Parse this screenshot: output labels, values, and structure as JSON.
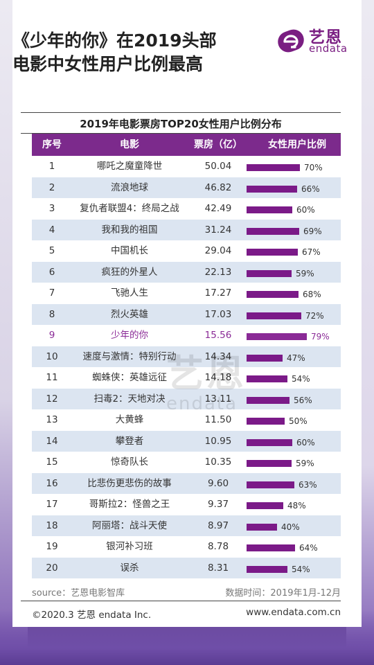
{
  "headline": {
    "line1": "《少年的你》在2019头部",
    "line2": "电影中女性用户比例最高"
  },
  "brand": {
    "name_cn": "艺恩",
    "name_en": "endata",
    "color": "#7a1e82"
  },
  "chart_data": {
    "type": "table",
    "title": "2019年电影票房TOP20女性用户比例分布",
    "columns": [
      "序号",
      "电影",
      "票房（亿）",
      "女性用户比例"
    ],
    "bar_max": 100,
    "highlight_rank": 9,
    "rows": [
      {
        "rank": "1",
        "movie": "哪吒之魔童降世",
        "box_office": "50.04",
        "female_pct": 70,
        "female_label": "70%"
      },
      {
        "rank": "2",
        "movie": "流浪地球",
        "box_office": "46.82",
        "female_pct": 66,
        "female_label": "66%"
      },
      {
        "rank": "3",
        "movie": "复仇者联盟4：终局之战",
        "box_office": "42.49",
        "female_pct": 60,
        "female_label": "60%"
      },
      {
        "rank": "4",
        "movie": "我和我的祖国",
        "box_office": "31.24",
        "female_pct": 69,
        "female_label": "69%"
      },
      {
        "rank": "5",
        "movie": "中国机长",
        "box_office": "29.04",
        "female_pct": 67,
        "female_label": "67%"
      },
      {
        "rank": "6",
        "movie": "疯狂的外星人",
        "box_office": "22.13",
        "female_pct": 59,
        "female_label": "59%"
      },
      {
        "rank": "7",
        "movie": "飞驰人生",
        "box_office": "17.27",
        "female_pct": 68,
        "female_label": "68%"
      },
      {
        "rank": "8",
        "movie": "烈火英雄",
        "box_office": "17.03",
        "female_pct": 72,
        "female_label": "72%"
      },
      {
        "rank": "9",
        "movie": "少年的你",
        "box_office": "15.56",
        "female_pct": 79,
        "female_label": "79%"
      },
      {
        "rank": "10",
        "movie": "速度与激情：特别行动",
        "box_office": "14.34",
        "female_pct": 47,
        "female_label": "47%"
      },
      {
        "rank": "11",
        "movie": "蜘蛛侠：英雄远征",
        "box_office": "14.18",
        "female_pct": 54,
        "female_label": "54%"
      },
      {
        "rank": "12",
        "movie": "扫毒2：天地对决",
        "box_office": "13.11",
        "female_pct": 56,
        "female_label": "56%"
      },
      {
        "rank": "13",
        "movie": "大黄蜂",
        "box_office": "11.50",
        "female_pct": 50,
        "female_label": "50%"
      },
      {
        "rank": "14",
        "movie": "攀登者",
        "box_office": "10.95",
        "female_pct": 60,
        "female_label": "60%"
      },
      {
        "rank": "15",
        "movie": "惊奇队长",
        "box_office": "10.35",
        "female_pct": 59,
        "female_label": "59%"
      },
      {
        "rank": "16",
        "movie": "比悲伤更悲伤的故事",
        "box_office": "9.60",
        "female_pct": 63,
        "female_label": "63%"
      },
      {
        "rank": "17",
        "movie": "哥斯拉2：怪兽之王",
        "box_office": "9.37",
        "female_pct": 48,
        "female_label": "48%"
      },
      {
        "rank": "18",
        "movie": "阿丽塔：战斗天使",
        "box_office": "8.97",
        "female_pct": 40,
        "female_label": "40%"
      },
      {
        "rank": "19",
        "movie": "银河补习班",
        "box_office": "8.78",
        "female_pct": 64,
        "female_label": "64%"
      },
      {
        "rank": "20",
        "movie": "误杀",
        "box_office": "8.31",
        "female_pct": 54,
        "female_label": "54%"
      }
    ],
    "colors": {
      "header": "#7c2a8c",
      "bar": "#7b1a88",
      "highlight": "#8a2a96",
      "stripe": "#dce5f1"
    }
  },
  "footer": {
    "source": "source：艺恩电影智库",
    "data_time": "数据时间：2019年1月-12月",
    "copyright": "©2020.3 艺恩 endata Inc.",
    "website": "www.endata.com.cn"
  }
}
